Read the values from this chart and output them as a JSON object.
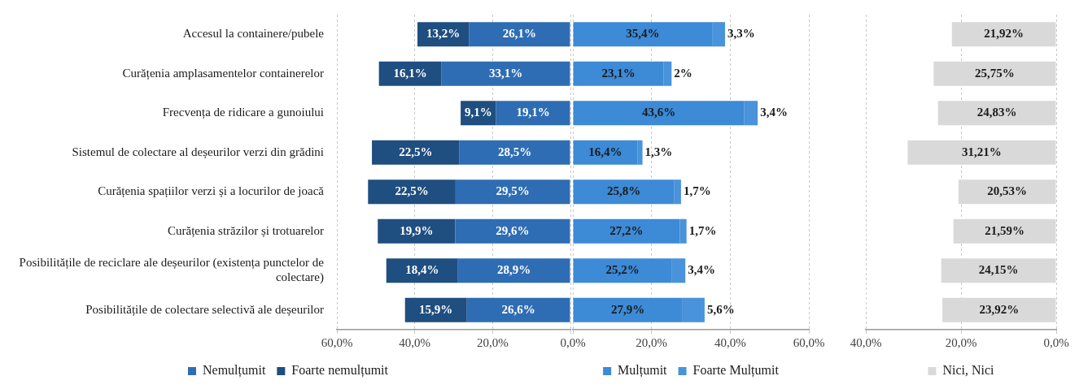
{
  "chart_data": [
    {
      "type": "bar",
      "orientation": "horizontal",
      "stacked": true,
      "categories": [
        "Accesul la containere/pubele",
        "Curățenia amplasamentelor containerelor",
        "Frecvența de ridicare a gunoiului",
        "Sistemul de colectare al deșeurilor verzi din grădini",
        "Curățenia spațiilor verzi și a locurilor de joacă",
        "Curățenia străzilor și trotuarelor",
        "Posibilitățile de reciclare ale deșeurilor (existența punctelor de colectare)",
        "Posibilitățile de colectare selectivă ale deșeurilor"
      ],
      "series": [
        {
          "name": "Nemulțumit",
          "color": "#2e6db3",
          "values": [
            26.1,
            33.1,
            19.1,
            28.5,
            29.5,
            29.6,
            28.9,
            26.6
          ],
          "value_labels": [
            "26,1%",
            "33,1%",
            "19,1%",
            "28,5%",
            "29,5%",
            "29,6%",
            "28,9%",
            "26,6%"
          ]
        },
        {
          "name": "Foarte nemulțumit",
          "color": "#1f4e80",
          "values": [
            13.2,
            16.1,
            9.1,
            22.5,
            22.5,
            19.9,
            18.4,
            15.9
          ],
          "value_labels": [
            "13,2%",
            "16,1%",
            "9,1%",
            "22,5%",
            "22,5%",
            "19,9%",
            "18,4%",
            "15,9%"
          ]
        }
      ],
      "xlim": [
        60,
        0
      ],
      "xticks": [
        {
          "value": 60,
          "label": "60,0%"
        },
        {
          "value": 40,
          "label": "40,0%"
        },
        {
          "value": 20,
          "label": "20,0%"
        },
        {
          "value": 0,
          "label": null
        }
      ],
      "grid": "x",
      "legend": "bottom"
    },
    {
      "type": "bar",
      "orientation": "horizontal",
      "stacked": true,
      "categories": [
        null,
        null,
        null,
        null,
        null,
        null,
        null,
        null
      ],
      "series": [
        {
          "name": "Mulțumit",
          "color": "#3d8ad6",
          "values": [
            35.4,
            23.1,
            43.6,
            16.4,
            25.8,
            27.2,
            25.2,
            27.9
          ],
          "value_labels": [
            "35,4%",
            "23,1%",
            "43,6%",
            "16,4%",
            "25,8%",
            "27,2%",
            "25,2%",
            "27,9%"
          ]
        },
        {
          "name": "Foarte Mulțumit",
          "color": "#4893db",
          "values": [
            3.3,
            2,
            3.4,
            1.3,
            1.7,
            1.7,
            3.4,
            5.6
          ],
          "value_labels": [
            "3,3%",
            "2%",
            "3,4%",
            "1,3%",
            "1,7%",
            "1,7%",
            "3,4%",
            "5,6%"
          ]
        }
      ],
      "xlim": [
        0,
        60
      ],
      "xticks": [
        {
          "value": 0,
          "label": "0,0%"
        },
        {
          "value": 20,
          "label": "20,0%"
        },
        {
          "value": 40,
          "label": "40,0%"
        },
        {
          "value": 60,
          "label": "60,0%"
        }
      ],
      "grid": "x",
      "legend": "bottom",
      "tick_labels": "x"
    },
    {
      "type": "bar",
      "orientation": "horizontal",
      "categories": [
        null,
        null,
        null,
        null,
        null,
        null,
        null,
        null
      ],
      "series": [
        {
          "name": "Nici, Nici",
          "color": "#d9d9d9",
          "values": [
            21.92,
            25.75,
            24.83,
            31.21,
            20.53,
            21.59,
            24.15,
            23.92
          ],
          "value_labels": [
            "21,92%",
            "25,75%",
            "24,83%",
            "31,21%",
            "20,53%",
            "21,59%",
            "24,15%",
            "23,92%"
          ]
        }
      ],
      "xlim": [
        40,
        0
      ],
      "xticks": [
        {
          "value": 40,
          "label": "40,0%"
        },
        {
          "value": 20,
          "label": "20,0%"
        },
        {
          "value": 0,
          "label": "0,0%"
        }
      ],
      "grid": "x",
      "legend": "bottom",
      "tick_labels": "x"
    }
  ]
}
